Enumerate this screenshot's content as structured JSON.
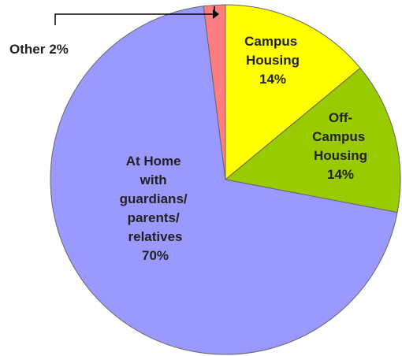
{
  "chart_data": {
    "type": "pie",
    "categories": [
      "Campus Housing",
      "Off-Campus Housing",
      "At Home with guardians/ parents/ relatives",
      "Other"
    ],
    "values": [
      14,
      14,
      70,
      2
    ],
    "value_labels": [
      "14%",
      "14%",
      "70%",
      "2%"
    ],
    "colors": [
      "#ffff00",
      "#99cc00",
      "#9999ff",
      "#ff7c80"
    ]
  }
}
